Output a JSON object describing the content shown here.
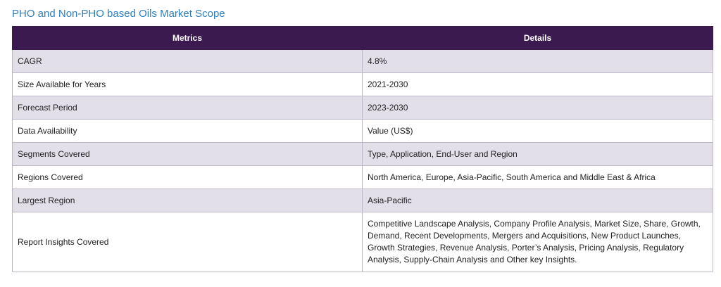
{
  "title": "PHO and Non-PHO based Oils Market Scope",
  "table": {
    "headers": {
      "metrics": "Metrics",
      "details": "Details"
    },
    "rows": [
      {
        "metric": "CAGR",
        "detail": "4.8%"
      },
      {
        "metric": "Size Available for Years",
        "detail": "2021-2030"
      },
      {
        "metric": "Forecast Period",
        "detail": "2023-2030"
      },
      {
        "metric": "Data Availability",
        "detail": "Value (US$)"
      },
      {
        "metric": "Segments Covered",
        "detail": "Type, Application, End-User and Region"
      },
      {
        "metric": "Regions Covered",
        "detail": "North America, Europe, Asia-Pacific, South America and Middle East & Africa"
      },
      {
        "metric": "Largest Region",
        "detail": "Asia-Pacific"
      },
      {
        "metric": "Report Insights Covered",
        "detail": "Competitive Landscape Analysis, Company Profile Analysis, Market Size, Share, Growth, Demand, Recent Developments, Mergers and Acquisitions, New Product Launches, Growth Strategies, Revenue Analysis, Porter’s Analysis, Pricing Analysis, Regulatory Analysis, Supply-Chain Analysis and Other key Insights."
      }
    ]
  }
}
